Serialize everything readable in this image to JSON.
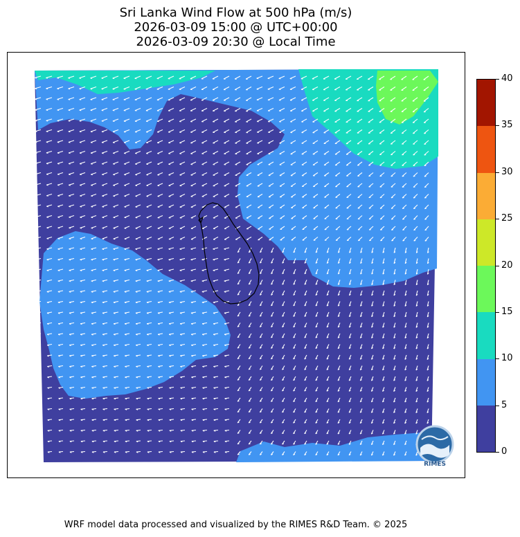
{
  "title": {
    "line1": "Sri Lanka Wind Flow at 500 hPa (m/s)",
    "line2": "2026-03-09 15:00 @ UTC+00:00",
    "line3": "2026-03-09 20:30 @ Local Time"
  },
  "colorbar": {
    "levels": [
      0,
      5,
      10,
      15,
      20,
      25,
      30,
      35,
      40
    ],
    "labels": [
      "0",
      "5",
      "10",
      "15",
      "20",
      "25",
      "30",
      "35",
      "40"
    ],
    "colors": [
      "#3f3f9f",
      "#4195f2",
      "#19dbc0",
      "#6cf85a",
      "#cde828",
      "#fbac35",
      "#ee5511",
      "#a21500"
    ]
  },
  "map": {
    "variable": "wind speed",
    "units": "m/s",
    "vector_color": "#ffffff",
    "coastline_color": "#000000"
  },
  "logo": {
    "text": "RIMES",
    "icon": "rimes-logo-icon"
  },
  "footer": {
    "credit": "WRF model data processed and visualized by the RIMES R&D Team. © 2025"
  }
}
